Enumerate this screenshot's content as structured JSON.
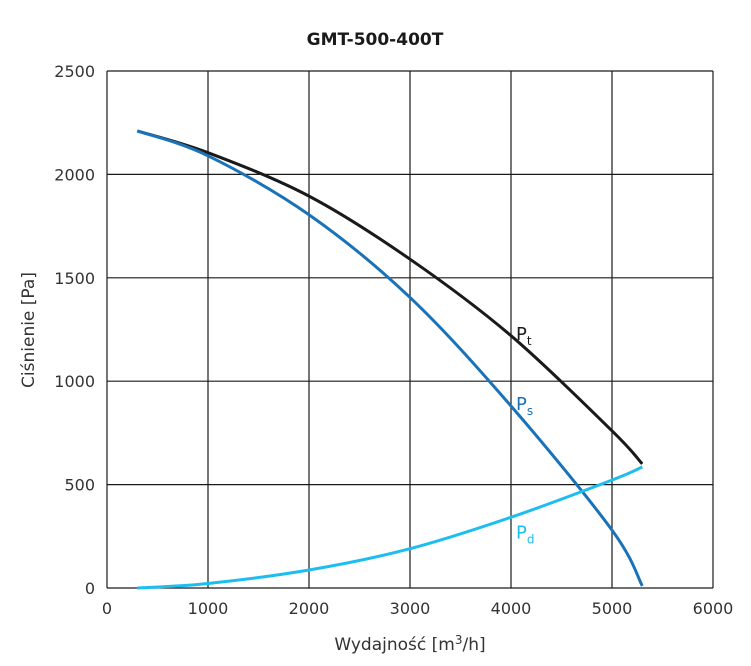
{
  "chart_data": {
    "type": "line",
    "title": "GMT-500-400T",
    "xlabel": "Wydajność [m³/h]",
    "xlabel_parts": {
      "main": "Wydajność [m",
      "sup": "3",
      "tail": "/h]"
    },
    "ylabel": "Ciśnienie [Pa]",
    "xlim": [
      0,
      6000
    ],
    "ylim": [
      0,
      2500
    ],
    "xticks": [
      "0",
      "1000",
      "2000",
      "3000",
      "4000",
      "5000",
      "6000"
    ],
    "yticks": [
      "0",
      "500",
      "1000",
      "1500",
      "2000",
      "2500"
    ],
    "grid": true,
    "series": [
      {
        "name": "Pt",
        "label": "P",
        "sub": "t",
        "color": "#1a1a1a",
        "x": [
          300,
          1000,
          2000,
          3000,
          4000,
          5000,
          5300
        ],
        "y": [
          2210,
          2105,
          1895,
          1590,
          1220,
          760,
          600
        ],
        "label_at": [
          4050,
          1200
        ]
      },
      {
        "name": "Ps",
        "label": "P",
        "sub": "s",
        "color": "#1a72b8",
        "x": [
          300,
          1000,
          2000,
          3000,
          4000,
          5000,
          5300
        ],
        "y": [
          2210,
          2090,
          1805,
          1405,
          880,
          280,
          10
        ],
        "label_at": [
          4050,
          860
        ]
      },
      {
        "name": "Pd",
        "label": "P",
        "sub": "d",
        "color": "#1ebdf0",
        "x": [
          300,
          1000,
          2000,
          3000,
          4000,
          5000,
          5300
        ],
        "y": [
          0,
          22,
          87,
          190,
          342,
          522,
          585
        ],
        "label_at": [
          4050,
          240
        ]
      }
    ]
  }
}
